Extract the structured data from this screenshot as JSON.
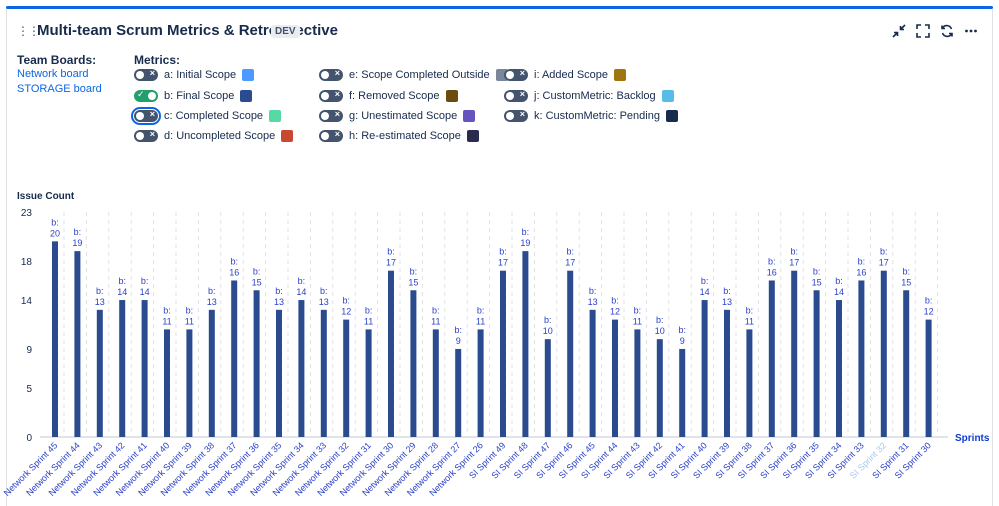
{
  "header": {
    "title": "Multi-team Scrum Metrics & Retrospective",
    "env_badge": "DEV"
  },
  "team_boards": {
    "label": "Team Boards:",
    "items": [
      "Network board",
      "STORAGE board"
    ]
  },
  "metrics": {
    "label": "Metrics:",
    "items": [
      {
        "label": "a: Initial Scope",
        "on": false,
        "color": "#4c9aff"
      },
      {
        "label": "b: Final Scope",
        "on": true,
        "color": "#2a4b8d"
      },
      {
        "label": "c: Completed Scope",
        "on": false,
        "color": "#57d9a3"
      },
      {
        "label": "d: Uncompleted Scope",
        "on": false,
        "color": "#c9482f"
      },
      {
        "label": "e: Scope Completed Outside",
        "on": false,
        "color": "#7a869a"
      },
      {
        "label": "f: Removed Scope",
        "on": false,
        "color": "#6b4b0e"
      },
      {
        "label": "g: Unestimated Scope",
        "on": false,
        "color": "#6554c0"
      },
      {
        "label": "h: Re-estimated Scope",
        "on": false,
        "color": "#2b2a4f"
      },
      {
        "label": "i: Added Scope",
        "on": false,
        "color": "#a3730e"
      },
      {
        "label": "j: CustomMetric: Backlog",
        "on": false,
        "color": "#56bde8"
      },
      {
        "label": "k: CustomMetric: Pending",
        "on": false,
        "color": "#172b4d"
      }
    ]
  },
  "chart_data": {
    "type": "bar",
    "title": "",
    "ylabel": "Issue Count",
    "xlabel": "Sprints",
    "ylim": [
      0,
      23
    ],
    "yticks": [
      0,
      5,
      9,
      14,
      18,
      23
    ],
    "series": [
      {
        "name": "b: Final Scope",
        "color": "#2a4b8d",
        "label_prefix": "b:",
        "values": [
          20,
          19,
          13,
          14,
          14,
          11,
          11,
          13,
          16,
          15,
          13,
          14,
          13,
          12,
          11,
          17,
          15,
          11,
          9,
          11,
          17,
          19,
          10,
          17,
          13,
          12,
          11,
          10,
          9,
          14,
          13,
          11,
          16,
          17,
          15,
          14,
          16,
          17,
          15,
          12
        ]
      }
    ],
    "categories": [
      "Network Sprint 45",
      "Network Sprint 44",
      "Network Sprint 43",
      "Network Sprint 42",
      "Network Sprint 41",
      "Network Sprint 40",
      "Network Sprint 39",
      "Network Sprint 38",
      "Network Sprint 37",
      "Network Sprint 36",
      "Network Sprint 35",
      "Network Sprint 34",
      "Network Sprint 33",
      "Network Sprint 32",
      "Network Sprint 31",
      "Network Sprint 30",
      "Network Sprint 29",
      "Network Sprint 28",
      "Network Sprint 27",
      "Network Sprint 26",
      "SI Sprint 49",
      "SI Sprint 48",
      "SI Sprint 47",
      "SI Sprint 46",
      "SI Sprint 45",
      "SI Sprint 44",
      "SI Sprint 43",
      "SI Sprint 42",
      "SI Sprint 41",
      "SI Sprint 40",
      "SI Sprint 39",
      "SI Sprint 38",
      "SI Sprint 37",
      "SI Sprint 36",
      "SI Sprint 35",
      "SI Sprint 34",
      "SI Sprint 33",
      "SI Sprint 32",
      "SI Sprint 31",
      "SI Sprint 30"
    ],
    "highlighted_category": "SI Sprint 32"
  }
}
